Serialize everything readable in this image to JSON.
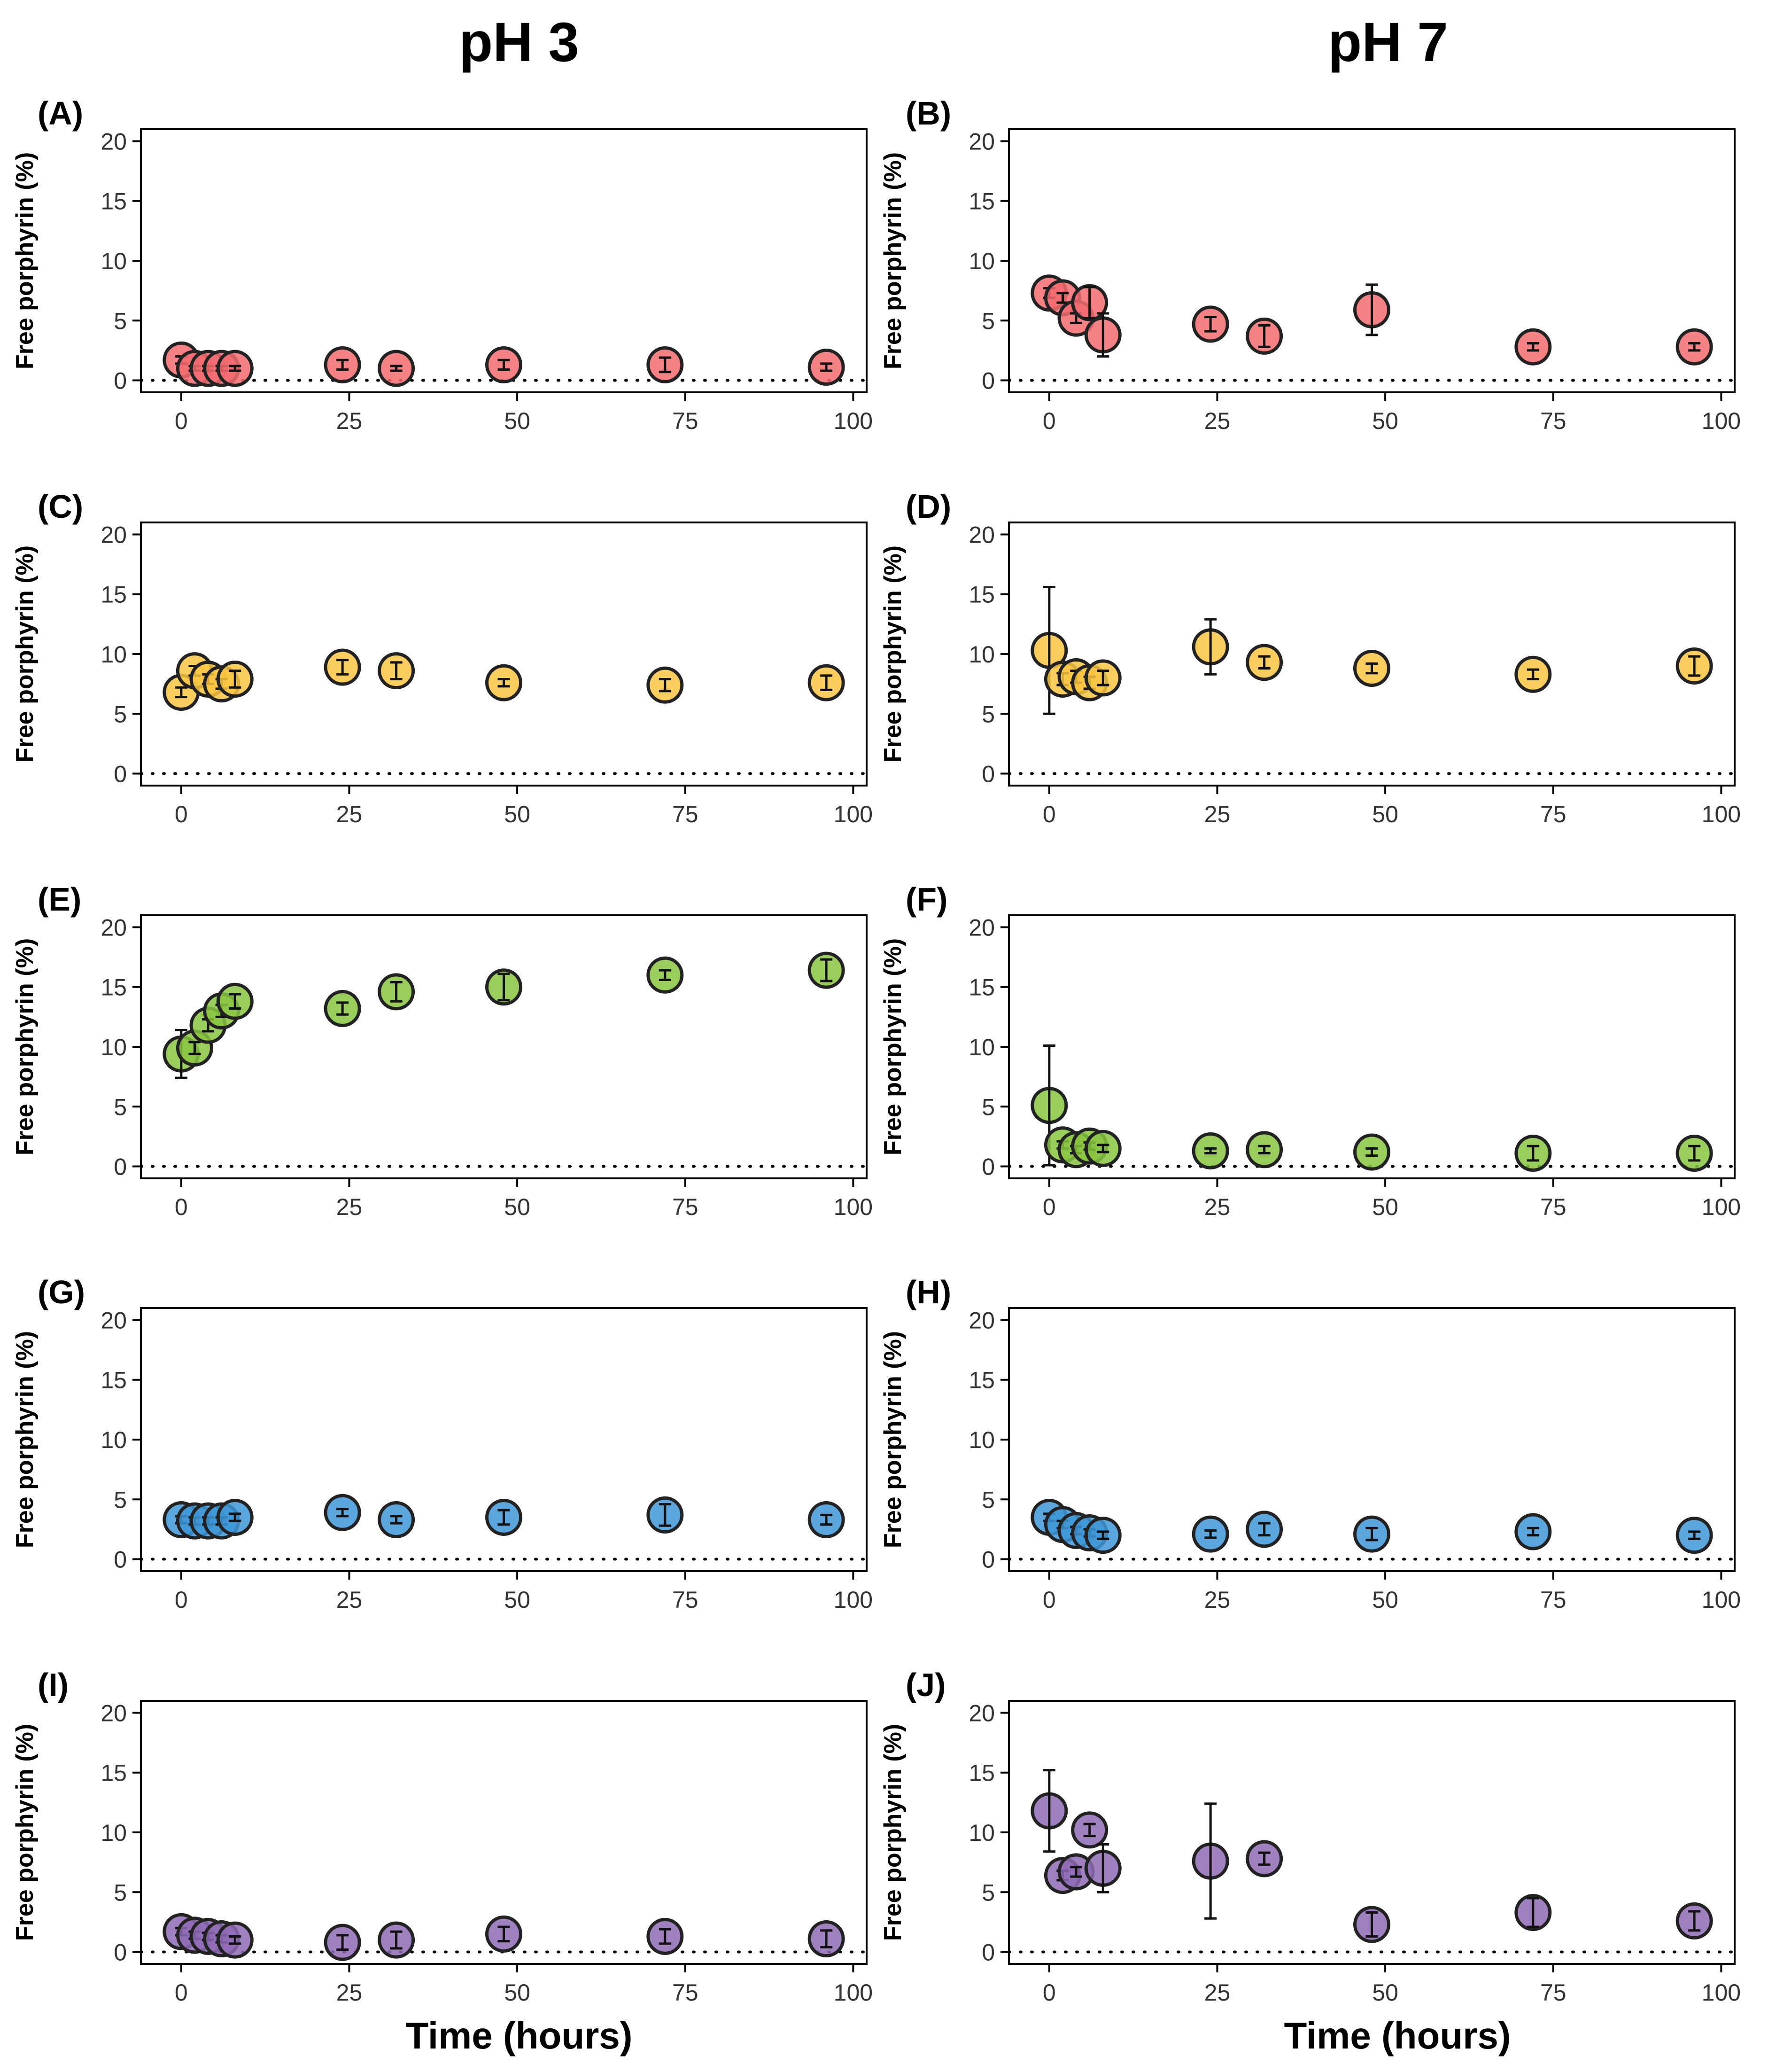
{
  "columns": [
    "pH 3",
    "pH 7"
  ],
  "x_axis_label": "Time (hours)",
  "y_axis_label": "Free porphyrin (%)",
  "chart_data": [
    {
      "panel": "(A)",
      "column": "pH 3",
      "type": "scatter",
      "color": "#F26B6E",
      "x": [
        0,
        2,
        4,
        6,
        8,
        24,
        32,
        48,
        72,
        96
      ],
      "y": [
        1.7,
        1.0,
        1.0,
        1.0,
        1.0,
        1.3,
        1.0,
        1.3,
        1.3,
        1.1
      ],
      "err": [
        0.3,
        0.2,
        0.2,
        0.2,
        0.2,
        0.4,
        0.2,
        0.4,
        0.6,
        0.3
      ],
      "xticks": [
        0,
        25,
        50,
        75,
        100
      ],
      "yticks": [
        0,
        5,
        10,
        15,
        20
      ],
      "xlim": [
        -6,
        102
      ],
      "ylim": [
        -1,
        21
      ]
    },
    {
      "panel": "(B)",
      "column": "pH 7",
      "type": "scatter",
      "color": "#F26B6E",
      "x": [
        0,
        2,
        4,
        6,
        8,
        24,
        32,
        48,
        72,
        96
      ],
      "y": [
        7.3,
        6.9,
        5.2,
        6.5,
        3.8,
        4.7,
        3.7,
        5.9,
        2.8,
        2.8
      ],
      "err": [
        0.4,
        0.4,
        0.4,
        1.3,
        1.8,
        0.6,
        0.9,
        2.1,
        0.3,
        0.3
      ],
      "xticks": [
        0,
        25,
        50,
        75,
        100
      ],
      "yticks": [
        0,
        5,
        10,
        15,
        20
      ],
      "xlim": [
        -6,
        102
      ],
      "ylim": [
        -1,
        21
      ]
    },
    {
      "panel": "(C)",
      "column": "pH 3",
      "type": "scatter",
      "color": "#F9C642",
      "x": [
        0,
        2,
        4,
        6,
        8,
        24,
        32,
        48,
        72,
        96
      ],
      "y": [
        6.8,
        8.6,
        7.9,
        7.5,
        7.9,
        8.9,
        8.6,
        7.6,
        7.4,
        7.6
      ],
      "err": [
        0.4,
        0.4,
        0.4,
        0.4,
        0.7,
        0.6,
        0.7,
        0.3,
        0.5,
        0.6
      ],
      "xticks": [
        0,
        25,
        50,
        75,
        100
      ],
      "yticks": [
        0,
        5,
        10,
        15,
        20
      ],
      "xlim": [
        -6,
        102
      ],
      "ylim": [
        -1,
        21
      ]
    },
    {
      "panel": "(D)",
      "column": "pH 7",
      "type": "scatter",
      "color": "#F9C642",
      "x": [
        0,
        2,
        4,
        6,
        8,
        24,
        32,
        48,
        72,
        96
      ],
      "y": [
        10.3,
        7.9,
        8.1,
        7.6,
        8.0,
        10.6,
        9.3,
        8.8,
        8.3,
        9.0
      ],
      "err": [
        5.3,
        0.5,
        0.5,
        0.5,
        0.6,
        2.3,
        0.5,
        0.4,
        0.4,
        0.8
      ],
      "xticks": [
        0,
        25,
        50,
        75,
        100
      ],
      "yticks": [
        0,
        5,
        10,
        15,
        20
      ],
      "xlim": [
        -6,
        102
      ],
      "ylim": [
        -1,
        21
      ]
    },
    {
      "panel": "(E)",
      "column": "pH 3",
      "type": "scatter",
      "color": "#88C540",
      "x": [
        0,
        2,
        4,
        6,
        8,
        24,
        32,
        48,
        72,
        96
      ],
      "y": [
        9.4,
        9.9,
        11.8,
        13.0,
        13.8,
        13.2,
        14.6,
        15.0,
        16.0,
        16.4
      ],
      "err": [
        2.0,
        0.5,
        0.5,
        0.5,
        0.6,
        0.5,
        0.8,
        1.1,
        0.4,
        0.9
      ],
      "xticks": [
        0,
        25,
        50,
        75,
        100
      ],
      "yticks": [
        0,
        5,
        10,
        15,
        20
      ],
      "xlim": [
        -6,
        102
      ],
      "ylim": [
        -1,
        21
      ]
    },
    {
      "panel": "(F)",
      "column": "pH 7",
      "type": "scatter",
      "color": "#88C540",
      "x": [
        0,
        2,
        4,
        6,
        8,
        24,
        32,
        48,
        72,
        96
      ],
      "y": [
        5.1,
        1.8,
        1.4,
        1.7,
        1.5,
        1.3,
        1.4,
        1.2,
        1.1,
        1.1
      ],
      "err": [
        5.0,
        0.3,
        0.3,
        0.3,
        0.3,
        0.2,
        0.3,
        0.3,
        0.6,
        0.6
      ],
      "xticks": [
        0,
        25,
        50,
        75,
        100
      ],
      "yticks": [
        0,
        5,
        10,
        15,
        20
      ],
      "xlim": [
        -6,
        102
      ],
      "ylim": [
        -1,
        21
      ]
    },
    {
      "panel": "(G)",
      "column": "pH 3",
      "type": "scatter",
      "color": "#3E96D6",
      "x": [
        0,
        2,
        4,
        6,
        8,
        24,
        32,
        48,
        72,
        96
      ],
      "y": [
        3.3,
        3.2,
        3.2,
        3.2,
        3.5,
        3.9,
        3.3,
        3.5,
        3.7,
        3.3
      ],
      "err": [
        0.3,
        0.3,
        0.3,
        0.3,
        0.3,
        0.3,
        0.3,
        0.6,
        0.9,
        0.4
      ],
      "xticks": [
        0,
        25,
        50,
        75,
        100
      ],
      "yticks": [
        0,
        5,
        10,
        15,
        20
      ],
      "xlim": [
        -6,
        102
      ],
      "ylim": [
        -1,
        21
      ]
    },
    {
      "panel": "(H)",
      "column": "pH 7",
      "type": "scatter",
      "color": "#3E96D6",
      "x": [
        0,
        2,
        4,
        6,
        8,
        24,
        32,
        48,
        72,
        96
      ],
      "y": [
        3.5,
        2.9,
        2.4,
        2.2,
        2.0,
        2.1,
        2.5,
        2.1,
        2.3,
        2.0
      ],
      "err": [
        0.3,
        0.3,
        0.3,
        0.3,
        0.3,
        0.3,
        0.5,
        0.5,
        0.3,
        0.3
      ],
      "xticks": [
        0,
        25,
        50,
        75,
        100
      ],
      "yticks": [
        0,
        5,
        10,
        15,
        20
      ],
      "xlim": [
        -6,
        102
      ],
      "ylim": [
        -1,
        21
      ]
    },
    {
      "panel": "(I)",
      "column": "pH 3",
      "type": "scatter",
      "color": "#8E6BB5",
      "x": [
        0,
        2,
        4,
        6,
        8,
        24,
        32,
        48,
        72,
        96
      ],
      "y": [
        1.7,
        1.4,
        1.3,
        1.1,
        1.0,
        0.8,
        1.0,
        1.5,
        1.3,
        1.1
      ],
      "err": [
        0.3,
        0.3,
        0.3,
        0.3,
        0.3,
        0.6,
        0.7,
        0.6,
        0.6,
        0.7
      ],
      "xticks": [
        0,
        25,
        50,
        75,
        100
      ],
      "yticks": [
        0,
        5,
        10,
        15,
        20
      ],
      "xlim": [
        -6,
        102
      ],
      "ylim": [
        -1,
        21
      ]
    },
    {
      "panel": "(J)",
      "column": "pH 7",
      "type": "scatter",
      "color": "#8E6BB5",
      "x": [
        0,
        2,
        4,
        6,
        8,
        24,
        32,
        48,
        72,
        96
      ],
      "y": [
        11.8,
        6.4,
        6.7,
        10.2,
        7.0,
        7.6,
        7.8,
        2.3,
        3.3,
        2.6
      ],
      "err": [
        3.4,
        0.4,
        0.4,
        0.5,
        2.0,
        4.8,
        0.5,
        1.0,
        1.2,
        0.8
      ],
      "xticks": [
        0,
        25,
        50,
        75,
        100
      ],
      "yticks": [
        0,
        5,
        10,
        15,
        20
      ],
      "xlim": [
        -6,
        102
      ],
      "ylim": [
        -1,
        21
      ]
    }
  ]
}
